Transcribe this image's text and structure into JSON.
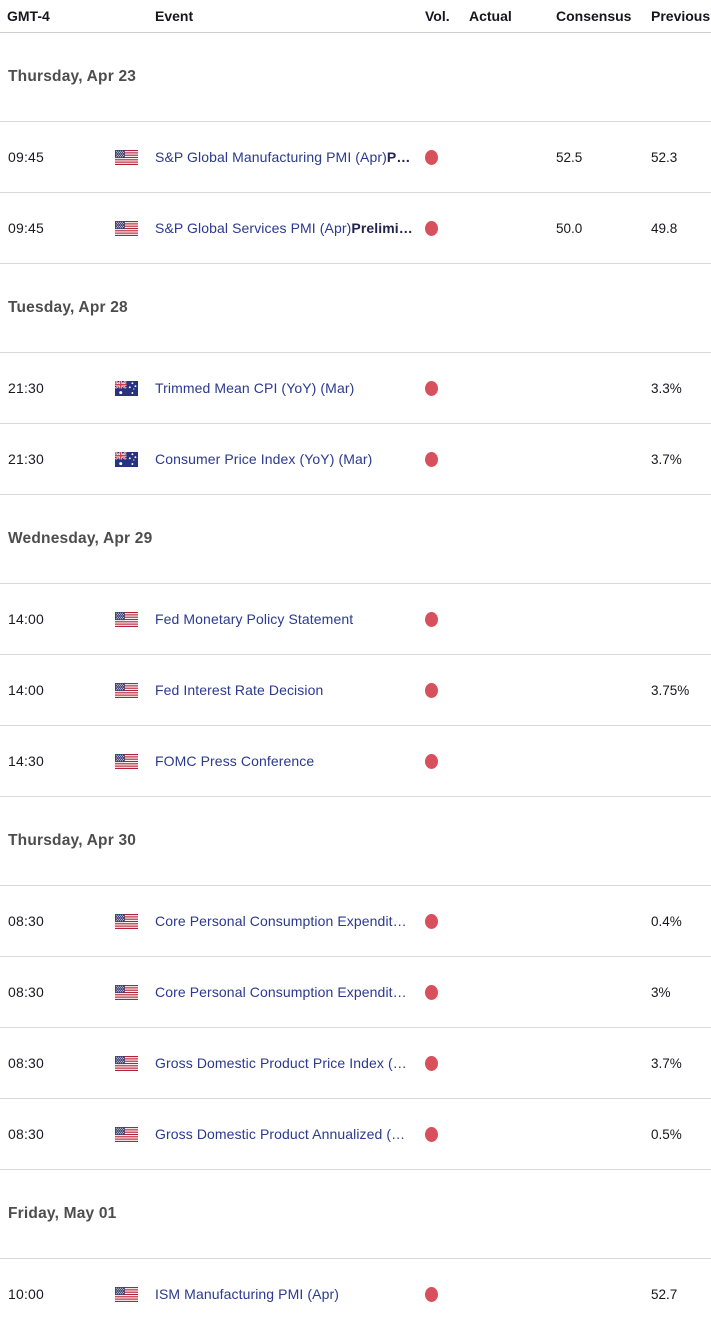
{
  "table": {
    "columns": {
      "time": "GMT-4",
      "event": "Event",
      "vol": "Vol.",
      "actual": "Actual",
      "consensus": "Consensus",
      "previous": "Previous"
    },
    "colors": {
      "event_link": "#2b3990",
      "volatility_high": "#d8505c",
      "date_header_text": "#4d4d4d",
      "header_text": "#16161f"
    },
    "flag_icons": {
      "us": "us-flag-icon",
      "au": "australia-flag-icon"
    },
    "volatility_icon_name": "volatility-high-dot-icon",
    "sections": [
      {
        "date": "Thursday, Apr 23",
        "rows": [
          {
            "time": "09:45",
            "country": "us",
            "event": "S&P Global Manufacturing PMI (Apr)",
            "event_bold": "P…",
            "vol": "high",
            "actual": "",
            "consensus": "52.5",
            "previous": "52.3"
          },
          {
            "time": "09:45",
            "country": "us",
            "event": "S&P Global Services PMI (Apr)",
            "event_bold": "Prelimi…",
            "vol": "high",
            "actual": "",
            "consensus": "50.0",
            "previous": "49.8"
          }
        ]
      },
      {
        "date": "Tuesday, Apr 28",
        "rows": [
          {
            "time": "21:30",
            "country": "au",
            "event": "Trimmed Mean CPI (YoY) (Mar)",
            "event_bold": "",
            "vol": "high",
            "actual": "",
            "consensus": "",
            "previous": "3.3%"
          },
          {
            "time": "21:30",
            "country": "au",
            "event": "Consumer Price Index (YoY) (Mar)",
            "event_bold": "",
            "vol": "high",
            "actual": "",
            "consensus": "",
            "previous": "3.7%"
          }
        ]
      },
      {
        "date": "Wednesday, Apr 29",
        "rows": [
          {
            "time": "14:00",
            "country": "us",
            "event": "Fed Monetary Policy Statement",
            "event_bold": "",
            "vol": "high",
            "actual": "",
            "consensus": "",
            "previous": ""
          },
          {
            "time": "14:00",
            "country": "us",
            "event": "Fed Interest Rate Decision",
            "event_bold": "",
            "vol": "high",
            "actual": "",
            "consensus": "",
            "previous": "3.75%"
          },
          {
            "time": "14:30",
            "country": "us",
            "event": "FOMC Press Conference",
            "event_bold": "",
            "vol": "high",
            "actual": "",
            "consensus": "",
            "previous": ""
          }
        ]
      },
      {
        "date": "Thursday, Apr 30",
        "rows": [
          {
            "time": "08:30",
            "country": "us",
            "event": "Core Personal Consumption Expendit…",
            "event_bold": "",
            "vol": "high",
            "actual": "",
            "consensus": "",
            "previous": "0.4%"
          },
          {
            "time": "08:30",
            "country": "us",
            "event": "Core Personal Consumption Expendit…",
            "event_bold": "",
            "vol": "high",
            "actual": "",
            "consensus": "",
            "previous": "3%"
          },
          {
            "time": "08:30",
            "country": "us",
            "event": "Gross Domestic Product Price Index (…",
            "event_bold": "",
            "vol": "high",
            "actual": "",
            "consensus": "",
            "previous": "3.7%"
          },
          {
            "time": "08:30",
            "country": "us",
            "event": "Gross Domestic Product Annualized (…",
            "event_bold": "",
            "vol": "high",
            "actual": "",
            "consensus": "",
            "previous": "0.5%"
          }
        ]
      },
      {
        "date": "Friday, May 01",
        "rows": [
          {
            "time": "10:00",
            "country": "us",
            "event": "ISM Manufacturing PMI (Apr)",
            "event_bold": "",
            "vol": "high",
            "actual": "",
            "consensus": "",
            "previous": "52.7"
          }
        ]
      }
    ]
  }
}
